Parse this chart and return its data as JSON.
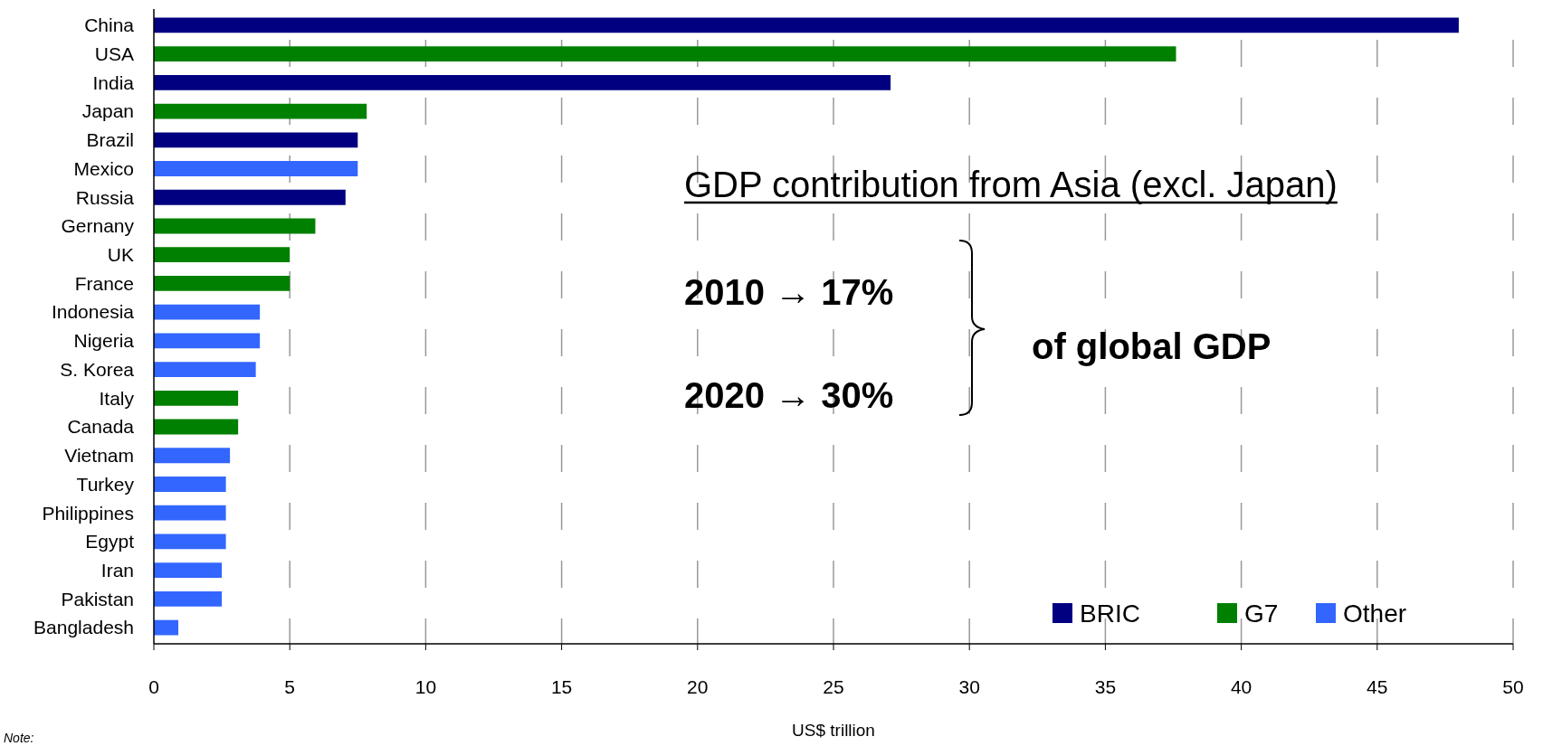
{
  "chart_data": {
    "type": "bar",
    "orientation": "horizontal",
    "categories": [
      "China",
      "USA",
      "India",
      "Japan",
      "Brazil",
      "Mexico",
      "Russia",
      "Gernany",
      "UK",
      "France",
      "Indonesia",
      "Nigeria",
      "S. Korea",
      "Italy",
      "Canada",
      "Vietnam",
      "Turkey",
      "Philippines",
      "Egypt",
      "Iran",
      "Pakistan",
      "Bangladesh"
    ],
    "series": [
      {
        "name": "BRIC",
        "color": "#000080",
        "values": [
          48.0,
          null,
          27.1,
          null,
          7.5,
          null,
          7.05,
          null,
          null,
          null,
          null,
          null,
          null,
          null,
          null,
          null,
          null,
          null,
          null,
          null,
          null,
          null
        ]
      },
      {
        "name": "G7",
        "color": "#008000",
        "values": [
          null,
          37.6,
          null,
          7.83,
          null,
          null,
          null,
          5.94,
          5.0,
          5.0,
          null,
          null,
          null,
          3.1,
          3.1,
          null,
          null,
          null,
          null,
          null,
          null,
          null
        ]
      },
      {
        "name": "Other",
        "color": "#3366ff",
        "values": [
          null,
          null,
          null,
          null,
          null,
          7.5,
          null,
          null,
          null,
          null,
          3.9,
          3.9,
          3.75,
          null,
          null,
          2.8,
          2.65,
          2.65,
          2.65,
          2.5,
          2.5,
          0.9
        ]
      }
    ],
    "xlim": [
      0,
      50
    ],
    "xticks": [
      0,
      5,
      10,
      15,
      20,
      25,
      30,
      35,
      40,
      45,
      50
    ],
    "xlabel": "US$ trillion",
    "grid": "x",
    "legend": "bottom right",
    "annotations": [
      "GDP contribution from Asia (excl. Japan)",
      "2010 → 17%",
      "2020 → 30%",
      "of global GDP",
      "Note:"
    ]
  }
}
